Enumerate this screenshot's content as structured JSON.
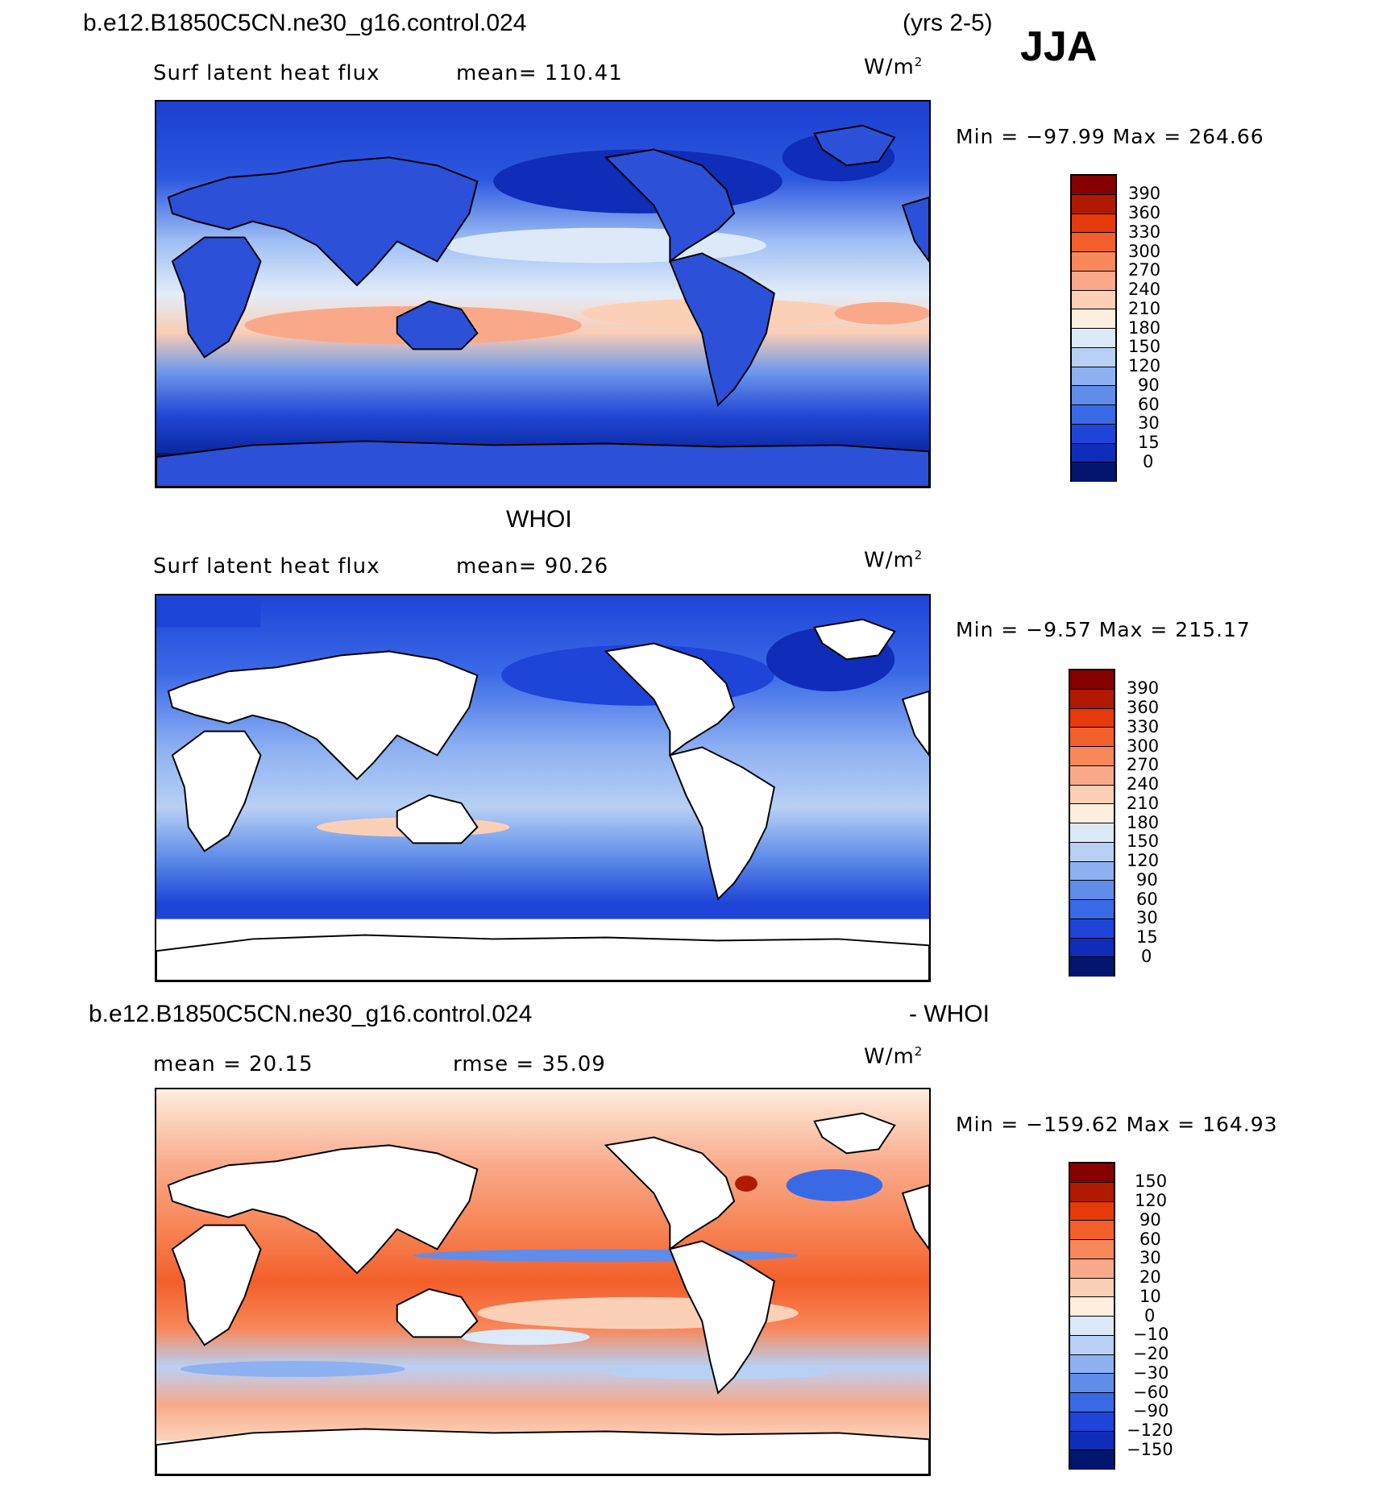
{
  "header": {
    "case": "b.e12.B1850C5CN.ne30_g16.control.024",
    "years": "(yrs 2-5)",
    "season": "JJA"
  },
  "panels": [
    {
      "title": "",
      "variable": "Surf latent heat flux",
      "stat1": "mean= 110.41",
      "stat2": "",
      "units_base": "W/m",
      "units_exp": "2",
      "minmax": "Min = −97.99 Max = 264.66",
      "levels": [
        "390",
        "360",
        "330",
        "300",
        "270",
        "240",
        "210",
        "180",
        "150",
        "120",
        "90",
        "60",
        "30",
        "15",
        "0"
      ],
      "colors": [
        "#870000",
        "#b01a00",
        "#e63a0a",
        "#f35f2a",
        "#f8875a",
        "#f9a98a",
        "#fcd0b6",
        "#fdeede",
        "#dce9f8",
        "#b8d0f4",
        "#8eb1f2",
        "#5f8de9",
        "#3a69e6",
        "#1f44d8",
        "#0f2db8",
        "#02166f"
      ]
    },
    {
      "title": "WHOI",
      "variable": "Surf latent heat flux",
      "stat1": "mean=  90.26",
      "stat2": "",
      "units_base": "W/m",
      "units_exp": "2",
      "minmax": "Min =  −9.57 Max = 215.17",
      "levels": [
        "390",
        "360",
        "330",
        "300",
        "270",
        "240",
        "210",
        "180",
        "150",
        "120",
        "90",
        "60",
        "30",
        "15",
        "0"
      ],
      "colors": [
        "#870000",
        "#b01a00",
        "#e63a0a",
        "#f35f2a",
        "#f8875a",
        "#f9a98a",
        "#fcd0b6",
        "#fdeede",
        "#dce9f8",
        "#b8d0f4",
        "#8eb1f2",
        "#5f8de9",
        "#3a69e6",
        "#1f44d8",
        "#0f2db8",
        "#02166f"
      ]
    },
    {
      "title": "b.e12.B1850C5CN.ne30_g16.control.024",
      "title_suffix": "- WHOI",
      "variable": "",
      "stat1": "mean =   20.15",
      "stat2": "rmse =   35.09",
      "units_base": "W/m",
      "units_exp": "2",
      "minmax": "Min = −159.62 Max = 164.93",
      "levels": [
        "150",
        "120",
        "90",
        "60",
        "30",
        "20",
        "10",
        "0",
        "−10",
        "−20",
        "−30",
        "−60",
        "−90",
        "−120",
        "−150"
      ],
      "colors": [
        "#870000",
        "#b01a00",
        "#e63a0a",
        "#f35f2a",
        "#f8875a",
        "#f9a98a",
        "#fcd0b6",
        "#fdeede",
        "#dce9f8",
        "#b8d0f4",
        "#8eb1f2",
        "#5f8de9",
        "#3a69e6",
        "#1f44d8",
        "#0f2db8",
        "#02166f"
      ]
    }
  ]
}
